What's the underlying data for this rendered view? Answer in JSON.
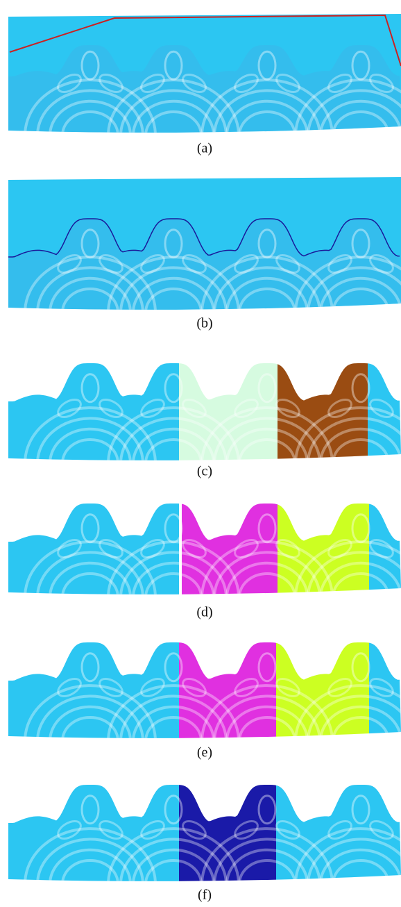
{
  "captions": [
    "(a)",
    "(b)",
    "(c)",
    "(d)",
    "(e)",
    "(f)"
  ]
}
